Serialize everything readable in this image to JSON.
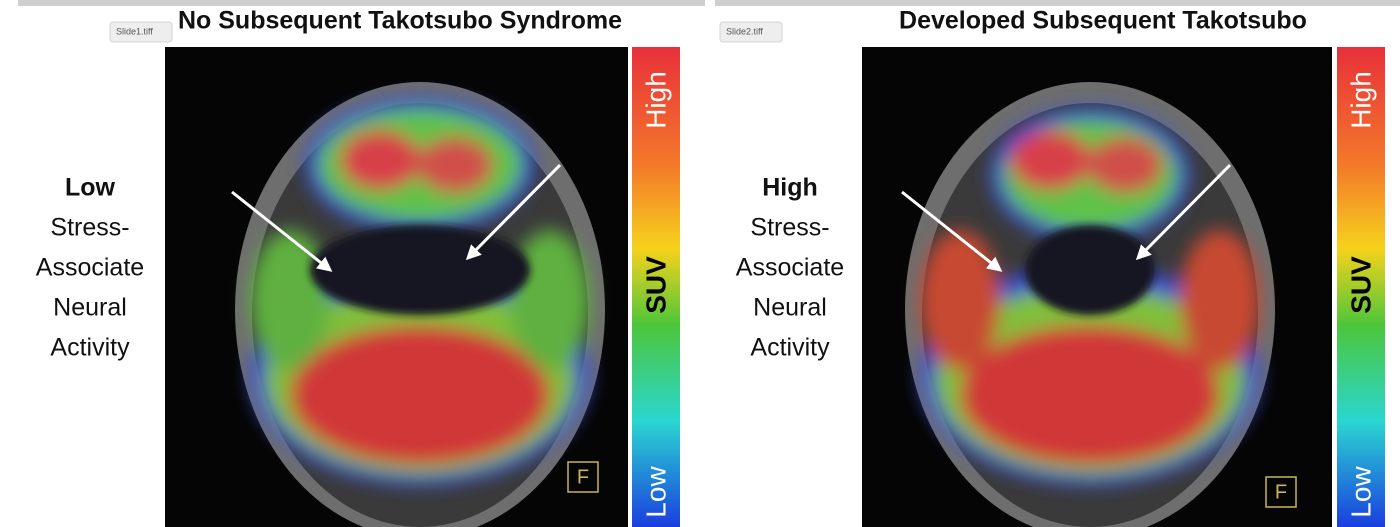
{
  "panels": [
    {
      "tab": "Slide1.tiff",
      "title": "No Subsequent Takotsubo Syndrome",
      "activity_level": "Low",
      "activity_lines": [
        "Stress-",
        "Associate",
        "Neural",
        "Activity"
      ],
      "scale": {
        "high": "High",
        "label": "SUV",
        "low": "Low"
      },
      "marker": "F"
    },
    {
      "tab": "Slide2.tiff",
      "title": "Developed Subsequent Takotsubo",
      "activity_level": "High",
      "activity_lines": [
        "Stress-",
        "Associate",
        "Neural",
        "Activity"
      ],
      "scale": {
        "high": "High",
        "label": "SUV",
        "low": "Low"
      },
      "marker": "F"
    }
  ]
}
